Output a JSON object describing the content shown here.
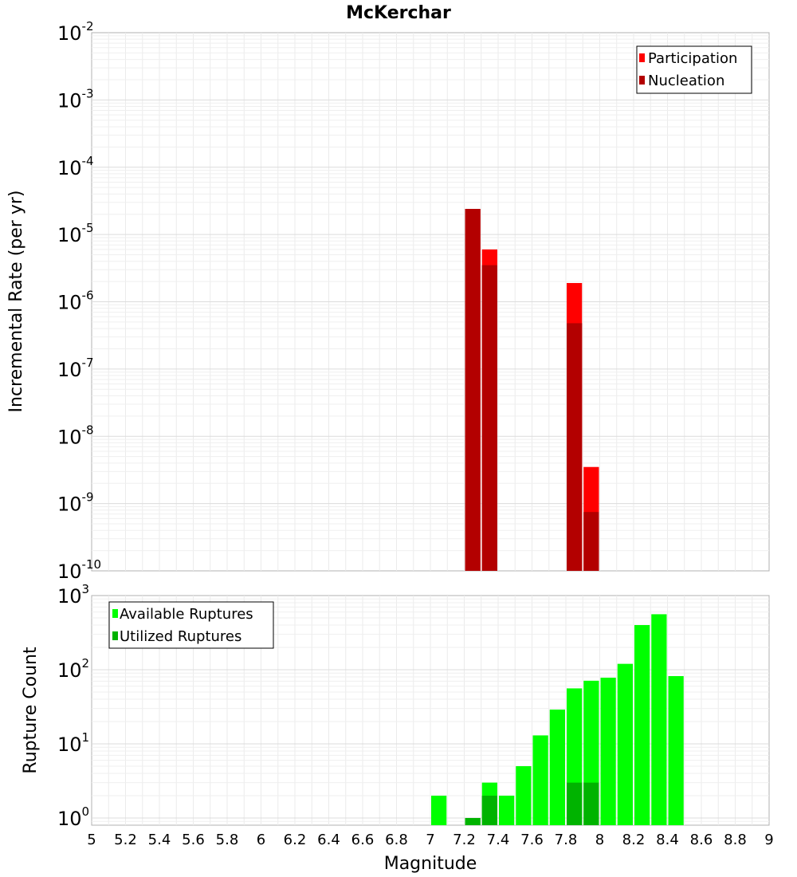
{
  "chart_data": [
    {
      "type": "bar",
      "title": "McKerchar",
      "xlabel": "Magnitude",
      "ylabel": "Incremental Rate (per yr)",
      "yscale": "log",
      "xlim": [
        5,
        9
      ],
      "ylim": [
        1e-10,
        0.01
      ],
      "yticks": [
        {
          "base": "10",
          "exp": "-10"
        },
        {
          "base": "10",
          "exp": "-9"
        },
        {
          "base": "10",
          "exp": "-8"
        },
        {
          "base": "10",
          "exp": "-7"
        },
        {
          "base": "10",
          "exp": "-6"
        },
        {
          "base": "10",
          "exp": "-5"
        },
        {
          "base": "10",
          "exp": "-4"
        },
        {
          "base": "10",
          "exp": "-3"
        },
        {
          "base": "10",
          "exp": "-2"
        }
      ],
      "legend": {
        "position": "top-right",
        "entries": [
          "Participation",
          "Nucleation"
        ]
      },
      "bin_width": 0.1,
      "series": [
        {
          "name": "Participation",
          "color": "#ff0000",
          "x": [
            7.25,
            7.35,
            7.85,
            7.95
          ],
          "values": [
            2.4e-05,
            6e-06,
            1.9e-06,
            3.5e-09
          ]
        },
        {
          "name": "Nucleation",
          "color": "#b30000",
          "x": [
            7.25,
            7.35,
            7.85,
            7.95
          ],
          "values": [
            2.4e-05,
            3.5e-06,
            4.8e-07,
            7.5e-10
          ]
        }
      ]
    },
    {
      "type": "bar",
      "xlabel": "Magnitude",
      "ylabel": "Rupture Count",
      "yscale": "log",
      "xlim": [
        5,
        9
      ],
      "ylim": [
        0.8,
        1000
      ],
      "yticks": [
        {
          "base": "10",
          "exp": "0"
        },
        {
          "base": "10",
          "exp": "1"
        },
        {
          "base": "10",
          "exp": "2"
        },
        {
          "base": "10",
          "exp": "3"
        }
      ],
      "xticks": [
        "5",
        "5.2",
        "5.4",
        "5.6",
        "5.8",
        "6",
        "6.2",
        "6.4",
        "6.6",
        "6.8",
        "7",
        "7.2",
        "7.4",
        "7.6",
        "7.8",
        "8",
        "8.2",
        "8.4",
        "8.6",
        "8.8",
        "9"
      ],
      "legend": {
        "position": "top-left",
        "entries": [
          "Available Ruptures",
          "Utilized Ruptures"
        ]
      },
      "bin_width": 0.1,
      "series": [
        {
          "name": "Available Ruptures",
          "color": "#00ff00",
          "x": [
            7.05,
            7.25,
            7.35,
            7.45,
            7.55,
            7.65,
            7.75,
            7.85,
            7.95,
            8.05,
            8.15,
            8.25,
            8.35,
            8.45
          ],
          "values": [
            2,
            1,
            3,
            2,
            5,
            13,
            29,
            56,
            71,
            78,
            120,
            400,
            560,
            82
          ]
        },
        {
          "name": "Utilized Ruptures",
          "color": "#00b300",
          "x": [
            7.25,
            7.35,
            7.85,
            7.95
          ],
          "values": [
            1,
            2,
            3,
            3
          ]
        }
      ]
    }
  ]
}
